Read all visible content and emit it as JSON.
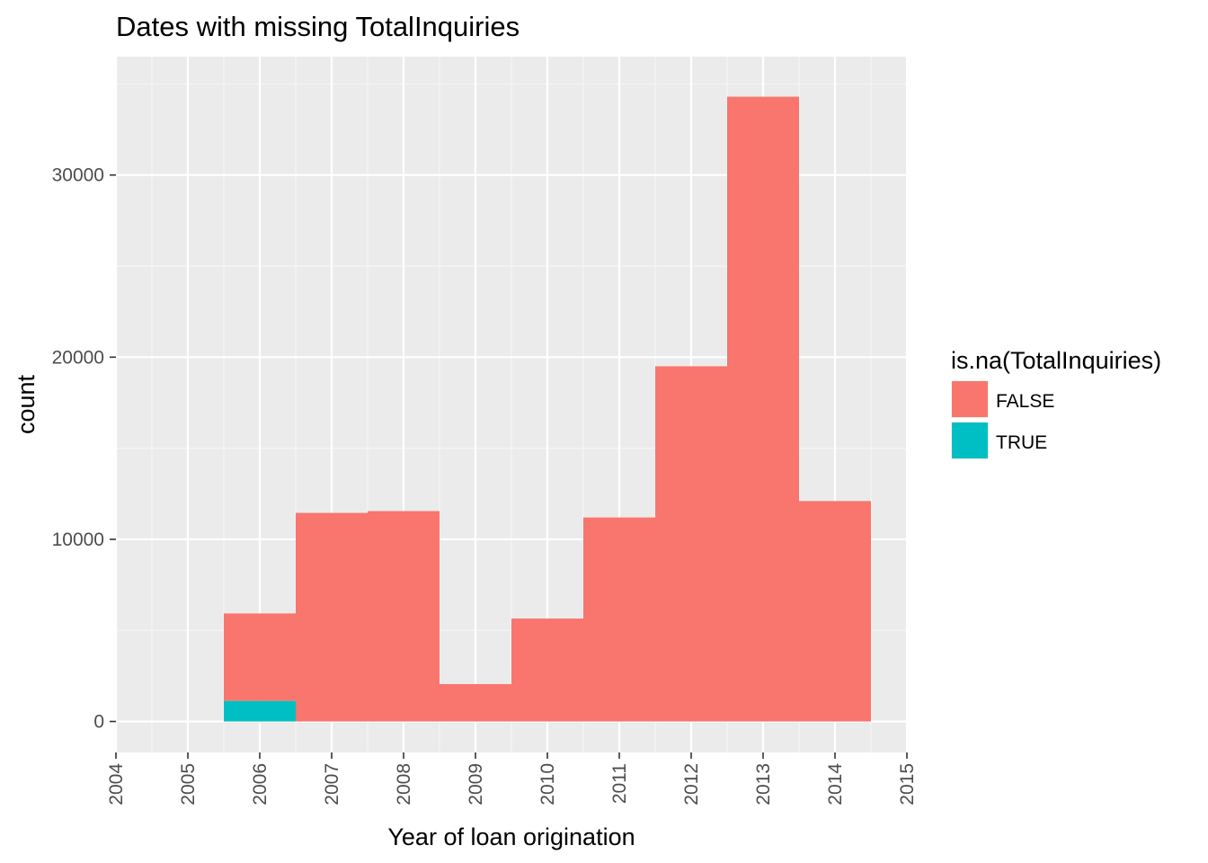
{
  "chart_data": {
    "type": "bar",
    "title": "Dates with missing  TotalInquiries",
    "xlabel": "Year of loan origination",
    "ylabel": "count",
    "x_ticks": [
      "2004",
      "2005",
      "2006",
      "2007",
      "2008",
      "2009",
      "2010",
      "2011",
      "2012",
      "2013",
      "2014",
      "2015"
    ],
    "y_ticks": [
      0,
      10000,
      20000,
      30000
    ],
    "xlim": [
      2004,
      2015
    ],
    "ylim": [
      -1700,
      36500
    ],
    "grid": true,
    "legend": {
      "title": "is.na(TotalInquiries)",
      "position": "right"
    },
    "categories": [
      "2006",
      "2007",
      "2008",
      "2009",
      "2010",
      "2011",
      "2012",
      "2013",
      "2014"
    ],
    "series": [
      {
        "name": "FALSE",
        "color": "#F8766D",
        "values": [
          4800,
          11450,
          11550,
          2050,
          5650,
          11200,
          19500,
          34300,
          12100
        ]
      },
      {
        "name": "TRUE",
        "color": "#00BFC4",
        "values": [
          1130,
          0,
          0,
          0,
          0,
          0,
          0,
          0,
          0
        ]
      }
    ]
  }
}
